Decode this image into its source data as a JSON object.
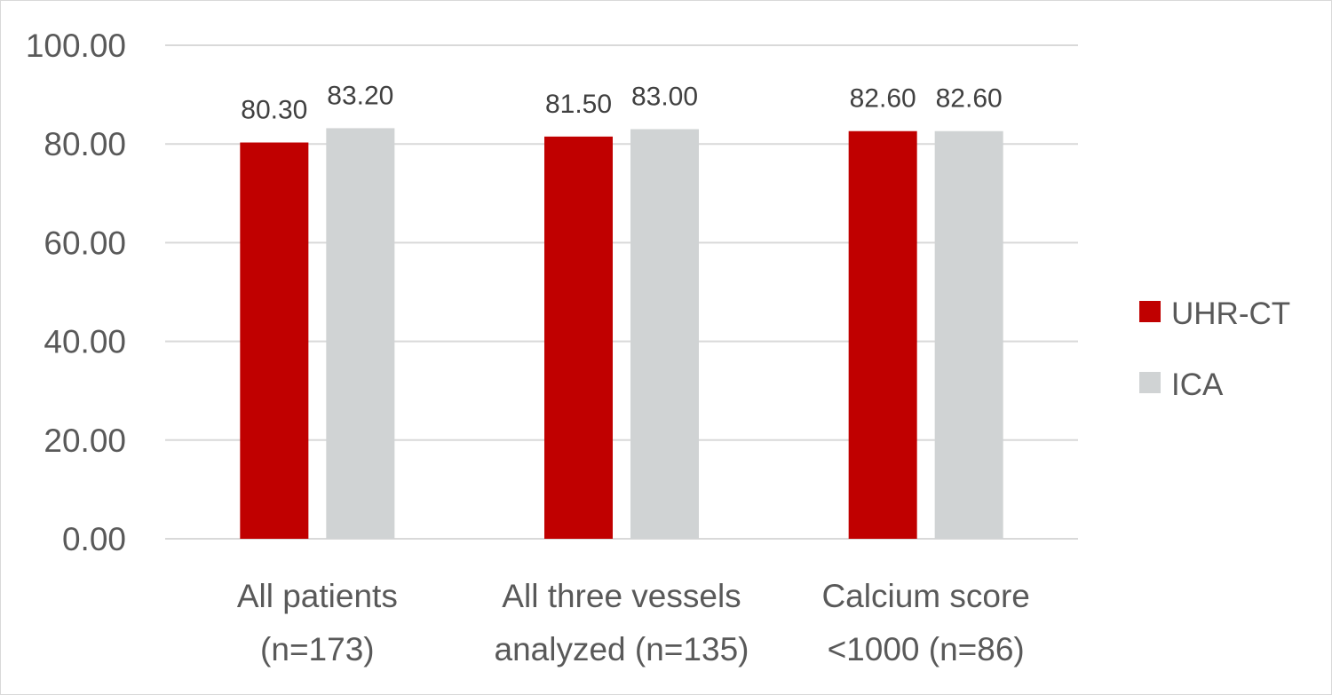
{
  "chart_data": {
    "type": "bar",
    "title": "",
    "xlabel": "",
    "ylabel": "",
    "ylim": [
      0,
      100
    ],
    "yticks": [
      0,
      20,
      40,
      60,
      80,
      100
    ],
    "ytick_labels": [
      "0.00",
      "20.00",
      "40.00",
      "60.00",
      "80.00",
      "100.00"
    ],
    "grid": true,
    "legend_position": "right",
    "categories": [
      [
        "All patients",
        "(n=173)"
      ],
      [
        "All three vessels",
        "analyzed (n=135)"
      ],
      [
        "Calcium score",
        "<1000 (n=86)"
      ]
    ],
    "series": [
      {
        "name": "UHR-CT",
        "color": "#c00000",
        "values": [
          80.3,
          81.5,
          82.6
        ],
        "labels": [
          "80.30",
          "81.50",
          "82.60"
        ]
      },
      {
        "name": "ICA",
        "color": "#d0d3d4",
        "values": [
          83.2,
          83.0,
          82.6
        ],
        "labels": [
          "83.20",
          "83.00",
          "82.60"
        ]
      }
    ]
  }
}
